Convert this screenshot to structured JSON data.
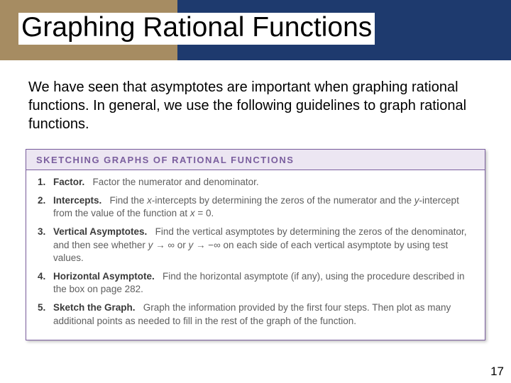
{
  "colors": {
    "header_band": "#1e3a6e",
    "header_accent": "#a68c62",
    "box_border": "#7a5e9e",
    "box_head_bg": "#ece6f2",
    "box_head_text": "#7a5e9e",
    "body_text": "#5e5e5e",
    "label_text": "#3a3a3a"
  },
  "title": "Graphing Rational Functions",
  "intro": "We have seen that asymptotes are important when graphing rational functions. In general, we use the following guidelines to graph rational functions.",
  "box": {
    "heading": "SKETCHING GRAPHS OF RATIONAL FUNCTIONS",
    "steps": [
      {
        "num": "1.",
        "label": "Factor.",
        "text": "Factor the numerator and denominator."
      },
      {
        "num": "2.",
        "label": "Intercepts.",
        "text": "Find the x-intercepts by determining the zeros of the numerator and the y-intercept from the value of the function at x = 0."
      },
      {
        "num": "3.",
        "label": "Vertical Asymptotes.",
        "text": "Find the vertical asymptotes by determining the zeros of the denominator, and then see whether y → ∞ or y → −∞ on each side of each vertical asymptote by using test values."
      },
      {
        "num": "4.",
        "label": "Horizontal Asymptote.",
        "text": "Find the horizontal asymptote (if any), using the procedure described in the box on page 282."
      },
      {
        "num": "5.",
        "label": "Sketch the Graph.",
        "text": "Graph the information provided by the first four steps. Then plot as many additional points as needed to fill in the rest of the graph of the function."
      }
    ]
  },
  "page_number": "17"
}
